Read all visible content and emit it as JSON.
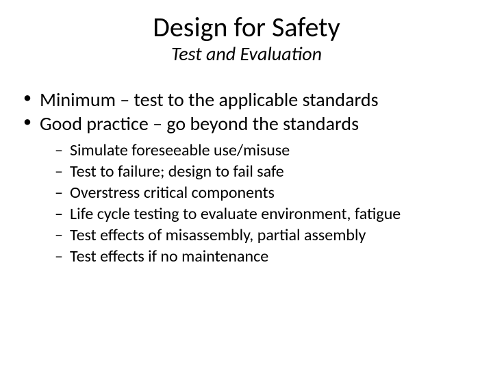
{
  "colors": {
    "background": "#ffffff",
    "text": "#000000"
  },
  "typography": {
    "title_fontsize": 40,
    "subtitle_fontsize": 28,
    "lvl1_fontsize": 28,
    "lvl2_fontsize": 24,
    "font_family": "Calibri"
  },
  "title": "Design for Safety",
  "subtitle": "Test and Evaluation",
  "bullets": {
    "lvl1": [
      "Minimum – test to the applicable standards",
      "Good practice – go beyond the standards"
    ],
    "lvl2": [
      "Simulate foreseeable use/misuse",
      "Test to failure; design to fail safe",
      "Overstress critical components",
      "Life cycle testing to evaluate environment, fatigue",
      "Test effects of misassembly, partial assembly",
      "Test effects if no maintenance"
    ]
  }
}
